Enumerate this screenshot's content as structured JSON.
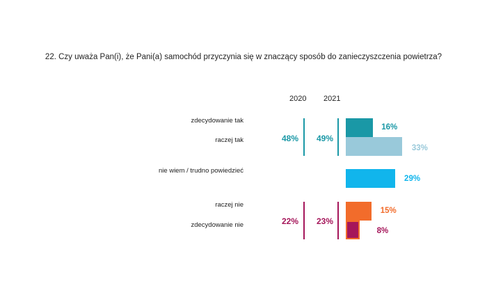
{
  "title": "22. Czy uważa Pan(i), że Pani(a) samochód przyczynia się w znaczący sposób do zanieczyszczenia powietrza?",
  "years": [
    "2020",
    "2021"
  ],
  "groups": [
    {
      "label": "tak",
      "v2020": "48%",
      "v2021": "49%",
      "color": "#1a98a6"
    },
    {
      "label": "nie",
      "v2020": "22%",
      "v2021": "23%",
      "color": "#a5165a"
    }
  ],
  "chart_data": {
    "type": "bar",
    "orientation": "horizontal",
    "title": "22. Czy uważa Pan(i), że Pani(a) samochód przyczynia się w znaczący sposób do zanieczyszczenia powietrza?",
    "categories": [
      "zdecydowanie tak",
      "raczej tak",
      "nie wiem / trudno powiedzieć",
      "raczej nie",
      "zdecydowanie nie"
    ],
    "values": [
      16,
      33,
      29,
      15,
      8
    ],
    "value_labels": [
      "16%",
      "33%",
      "29%",
      "15%",
      "8%"
    ],
    "colors": [
      "#1a98a6",
      "#99c9da",
      "#11b5ec",
      "#f26c2b",
      "#a5165a"
    ],
    "label_colors": [
      "#1a98a6",
      "#99c9da",
      "#11b5ec",
      "#f26c2b",
      "#a5165a"
    ],
    "summary": [
      {
        "group": "tak",
        "2020": "48%",
        "2021": "49%"
      },
      {
        "group": "nie",
        "2020": "22%",
        "2021": "23%"
      }
    ]
  }
}
